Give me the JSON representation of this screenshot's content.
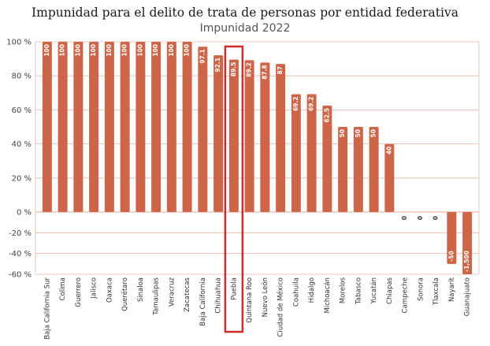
{
  "chart_data": {
    "type": "bar",
    "title": "Impunidad para el delito de trata de personas por entidad federativa",
    "subtitle": "Impunidad 2022",
    "ylim": [
      -60,
      100
    ],
    "yticks": [
      "100 %",
      "80 %",
      "60 %",
      "40 %",
      "20 %",
      "0 %",
      "-20 %",
      "-40 %",
      "-60 %"
    ],
    "ytick_values": [
      100,
      80,
      60,
      40,
      20,
      0,
      -20,
      -40,
      -60
    ],
    "grid": true,
    "bar_color": "#cd6648",
    "grid_color": "#e8b6a6",
    "highlight_color": "#d22b2b",
    "highlight_category": "Puebla",
    "categories": [
      "Baja California Sur",
      "Colima",
      "Guerrero",
      "Jalisco",
      "Oaxaca",
      "Querétaro",
      "Sinaloa",
      "Tamaulipas",
      "Veracruz",
      "Zacatecas",
      "Baja California",
      "Chihuahua",
      "Puebla",
      "Quintana Roo",
      "Nuevo León",
      "Ciudad de México",
      "Coahuila",
      "Hidalgo",
      "Michoacán",
      "Morelos",
      "Tabasco",
      "Yucatán",
      "Chiapas",
      "Campeche",
      "Sonora",
      "Tlaxcala",
      "Nayarit",
      "Guanajuato"
    ],
    "values": [
      100,
      100,
      100,
      100,
      100,
      100,
      100,
      100,
      100,
      100,
      97.1,
      92.1,
      89.5,
      89.2,
      87.8,
      87,
      69.2,
      69.2,
      62.5,
      50,
      50,
      50,
      40,
      0,
      0,
      0,
      -50,
      -1500
    ],
    "value_labels": [
      "100",
      "100",
      "100",
      "100",
      "100",
      "100",
      "100",
      "100",
      "100",
      "100",
      "97.1",
      "92.1",
      "89.5",
      "89.2",
      "87.8",
      "87",
      "69.2",
      "69.2",
      "62.5",
      "50",
      "50",
      "50",
      "40",
      "0",
      "0",
      "0",
      "-50",
      "-1,500"
    ]
  }
}
